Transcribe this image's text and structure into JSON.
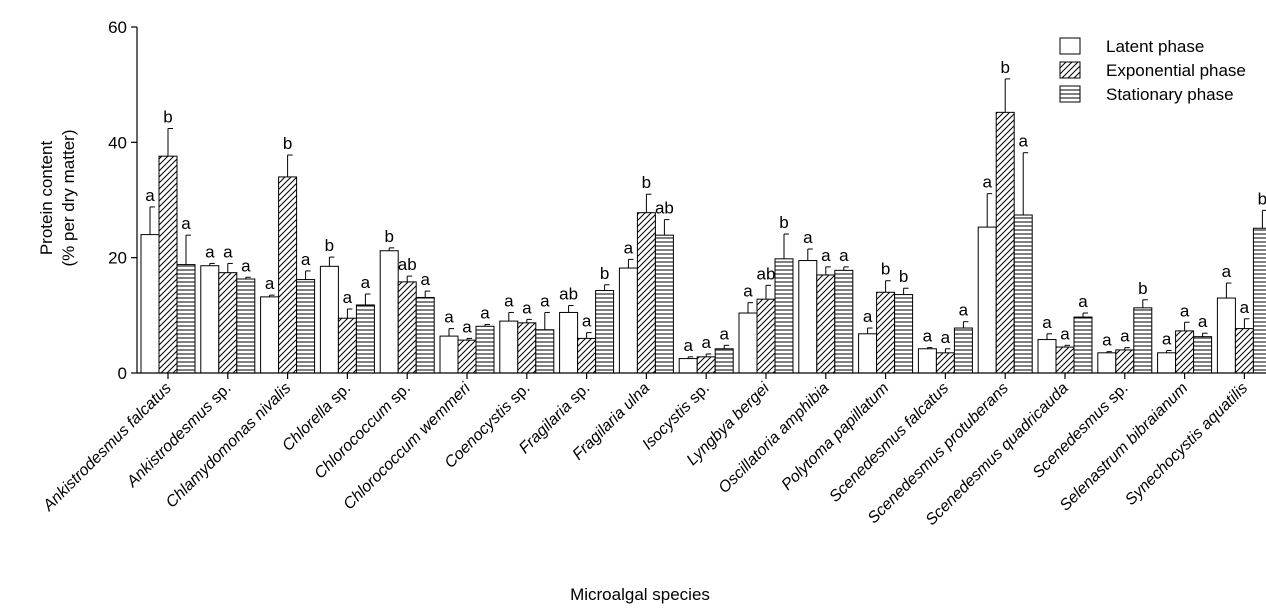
{
  "chart_data": {
    "type": "bar",
    "ylabel_line1": "Protein content",
    "ylabel_line2": "(% per dry matter)",
    "xlabel": "Microalgal species",
    "ylim": [
      0,
      60
    ],
    "yticks": [
      0,
      20,
      40,
      60
    ],
    "grid": false,
    "legend_position": "top-right",
    "categories": [
      {
        "italic": "Ankistrodesmus falcatus",
        "suffix": ""
      },
      {
        "italic": "Ankistrodesmus",
        "suffix": " sp."
      },
      {
        "italic": "Chlamydomonas nivalis",
        "suffix": ""
      },
      {
        "italic": "Chlorella",
        "suffix": " sp."
      },
      {
        "italic": "Chlorococcum",
        "suffix": " sp."
      },
      {
        "italic": "Chlorococcum wemmeri",
        "suffix": ""
      },
      {
        "italic": "Coenocystis",
        "suffix": " sp."
      },
      {
        "italic": "Fragilaria",
        "suffix": " sp."
      },
      {
        "italic": "Fragilaria ulna",
        "suffix": ""
      },
      {
        "italic": "Isocystis",
        "suffix": " sp."
      },
      {
        "italic": "Lyngbya bergei",
        "suffix": ""
      },
      {
        "italic": "Oscillatoria amphibia",
        "suffix": ""
      },
      {
        "italic": "Polytoma papillatum",
        "suffix": ""
      },
      {
        "italic": "Scenedesmus falcatus",
        "suffix": ""
      },
      {
        "italic": "Scenedesmus protuberans",
        "suffix": ""
      },
      {
        "italic": "Scenedesmus quadricauda",
        "suffix": ""
      },
      {
        "italic": "Scenedesmus",
        "suffix": " sp."
      },
      {
        "italic": "Selenastrum bibraianum",
        "suffix": ""
      },
      {
        "italic": "Synechocystis aquatilis",
        "suffix": ""
      }
    ],
    "series": [
      {
        "name": "Latent phase",
        "pattern": "open",
        "values": [
          24,
          18.6,
          13.2,
          18.5,
          21.2,
          6.4,
          9,
          10.5,
          18.2,
          2.5,
          10.4,
          19.5,
          6.8,
          4.2,
          25.3,
          5.8,
          3.5,
          3.5,
          13
        ],
        "errors": [
          4.8,
          0.4,
          0.3,
          1.6,
          0.5,
          1.3,
          1.5,
          1.2,
          1.5,
          0.3,
          1.8,
          2.0,
          1.0,
          0.2,
          5.8,
          1.0,
          0.2,
          0.4,
          2.6
        ],
        "letters": [
          "a",
          "a",
          "a",
          "b",
          "b",
          "a",
          "a",
          "ab",
          "a",
          "a",
          "a",
          "a",
          "a",
          "a",
          "a",
          "a",
          "a",
          "a",
          "a"
        ]
      },
      {
        "name": "Exponential phase",
        "pattern": "diagonal",
        "values": [
          37.6,
          17.4,
          34,
          9.5,
          15.8,
          5.7,
          8.7,
          6,
          27.8,
          2.8,
          12.8,
          17,
          14,
          3.5,
          45.2,
          4.5,
          4,
          7.3,
          7.7
        ],
        "errors": [
          4.8,
          1.6,
          3.8,
          1.6,
          1.0,
          0.3,
          0.6,
          1.0,
          3.2,
          0.5,
          2.4,
          1.4,
          2.0,
          0.7,
          5.8,
          0.3,
          0.4,
          1.5,
          1.7
        ],
        "letters": [
          "b",
          "a",
          "b",
          "a",
          "ab",
          "a",
          "a",
          "a",
          "b",
          "a",
          "ab",
          "a",
          "b",
          "a",
          "b",
          "a",
          "a",
          "a",
          "a"
        ]
      },
      {
        "name": "Stationary phase",
        "pattern": "horizontal",
        "values": [
          18.8,
          16.3,
          16.2,
          11.8,
          13.1,
          8.1,
          7.5,
          14.3,
          23.9,
          4.2,
          19.8,
          17.8,
          13.6,
          7.8,
          27.4,
          9.7,
          11.3,
          6.3,
          25.1
        ],
        "errors": [
          5.1,
          0.3,
          1.5,
          1.9,
          1.1,
          0.3,
          3.0,
          1.0,
          2.7,
          0.6,
          4.3,
          0.6,
          1.1,
          1.1,
          10.8,
          0.7,
          1.4,
          0.6,
          3.1
        ],
        "letters": [
          "a",
          "a",
          "a",
          "a",
          "a",
          "a",
          "a",
          "b",
          "ab",
          "a",
          "b",
          "a",
          "b",
          "a",
          "a",
          "a",
          "b",
          "a",
          "b"
        ]
      }
    ]
  }
}
